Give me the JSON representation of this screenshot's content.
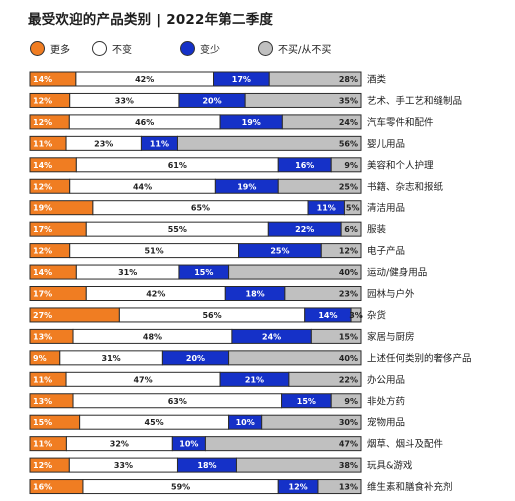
{
  "chart_data": {
    "type": "bar",
    "title": "最受欢迎的产品类别 | 2022年第二季度",
    "stacked": true,
    "legend_position": "top",
    "series": [
      {
        "name": "更多",
        "color": "#f07d22"
      },
      {
        "name": "不变",
        "color": "#ffffff"
      },
      {
        "name": "变少",
        "color": "#1531c8"
      },
      {
        "name": "不买/从不买",
        "color": "#c0c0c0"
      }
    ],
    "rows": [
      {
        "category": "酒类",
        "values": [
          14,
          42,
          17,
          28
        ],
        "labels": [
          "14%",
          "42%",
          "17%",
          "28%"
        ]
      },
      {
        "category": "艺术、手工艺和缝制品",
        "values": [
          12,
          33,
          20,
          35
        ],
        "labels": [
          "12%",
          "33%",
          "20%",
          "35%"
        ]
      },
      {
        "category": "汽车零件和配件",
        "values": [
          12,
          46,
          19,
          24
        ],
        "labels": [
          "12%",
          "46%",
          "19%",
          "24%"
        ]
      },
      {
        "category": "婴儿用品",
        "values": [
          11,
          23,
          11,
          56
        ],
        "labels": [
          "11%",
          "23%",
          "11%",
          "56%"
        ]
      },
      {
        "category": "美容和个人护理",
        "values": [
          14,
          61,
          16,
          9
        ],
        "labels": [
          "14%",
          "61%",
          "16%",
          "9%"
        ]
      },
      {
        "category": "书籍、杂志和报纸",
        "values": [
          12,
          44,
          19,
          25
        ],
        "labels": [
          "12%",
          "44%",
          "19%",
          "25%"
        ]
      },
      {
        "category": "清洁用品",
        "values": [
          19,
          65,
          11,
          5
        ],
        "labels": [
          "19%",
          "65%",
          "11%",
          "5%"
        ]
      },
      {
        "category": "服装",
        "values": [
          17,
          55,
          22,
          6
        ],
        "labels": [
          "17%",
          "55%",
          "22%",
          "6%"
        ]
      },
      {
        "category": "电子产品",
        "values": [
          12,
          51,
          25,
          12
        ],
        "labels": [
          "12%",
          "51%",
          "25%",
          "12%"
        ]
      },
      {
        "category": "运动/健身用品",
        "values": [
          14,
          31,
          15,
          40
        ],
        "labels": [
          "14%",
          "31%",
          "15%",
          "40%"
        ]
      },
      {
        "category": "园林与户外",
        "values": [
          17,
          42,
          18,
          23
        ],
        "labels": [
          "17%",
          "42%",
          "18%",
          "23%"
        ]
      },
      {
        "category": "杂货",
        "values": [
          27,
          56,
          14,
          3
        ],
        "labels": [
          "27%",
          "56%",
          "14%",
          "3%"
        ]
      },
      {
        "category": "家居与厨房",
        "values": [
          13,
          48,
          24,
          15
        ],
        "labels": [
          "13%",
          "48%",
          "24%",
          "15%"
        ]
      },
      {
        "category": "上述任何类别的奢侈产品",
        "values": [
          9,
          31,
          20,
          40
        ],
        "labels": [
          "9%",
          "31%",
          "20%",
          "40%"
        ]
      },
      {
        "category": "办公用品",
        "values": [
          11,
          47,
          21,
          22
        ],
        "labels": [
          "11%",
          "47%",
          "21%",
          "22%"
        ]
      },
      {
        "category": "非处方药",
        "values": [
          13,
          63,
          15,
          9
        ],
        "labels": [
          "13%",
          "63%",
          "15%",
          "9%"
        ]
      },
      {
        "category": "宠物用品",
        "values": [
          15,
          45,
          10,
          30
        ],
        "labels": [
          "15%",
          "45%",
          "10%",
          "30%"
        ]
      },
      {
        "category": "烟草、烟斗及配件",
        "values": [
          11,
          32,
          10,
          47
        ],
        "labels": [
          "11%",
          "32%",
          "10%",
          "47%"
        ]
      },
      {
        "category": "玩具&游戏",
        "values": [
          12,
          33,
          18,
          38
        ],
        "labels": [
          "12%",
          "33%",
          "18%",
          "38%"
        ]
      },
      {
        "category": "维生素和膳食补充剂",
        "values": [
          16,
          59,
          12,
          13
        ],
        "labels": [
          "16%",
          "59%",
          "12%",
          "13%"
        ]
      }
    ],
    "xlim": [
      0,
      100
    ],
    "grid": false
  }
}
